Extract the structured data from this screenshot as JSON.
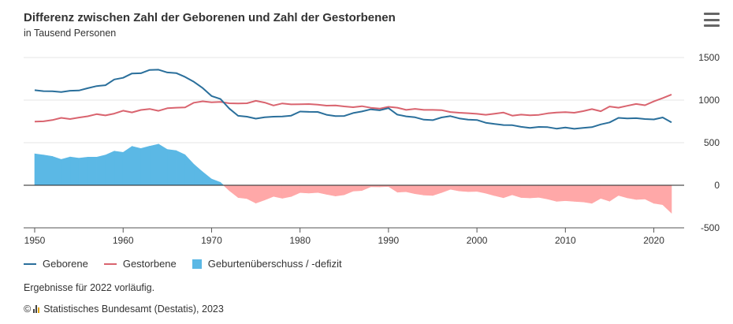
{
  "header": {
    "title": "Differenz zwischen Zahl der Geborenen und Zahl der Gestorbenen",
    "subtitle": "in Tausend Personen",
    "menu_icon": "hamburger-menu-icon"
  },
  "legend": {
    "births": "Geborene",
    "deaths": "Gestorbene",
    "balance": "Geburtenüberschuss / -defizit"
  },
  "footer": {
    "note": "Ergebnisse für 2022 vorläufig.",
    "copyright_symbol": "©",
    "source": "Statistisches Bundesamt (Destatis), 2023"
  },
  "colors": {
    "births": "#2a6f9b",
    "deaths": "#d9646f",
    "surplus": "#5bb8e5",
    "deficit": "#ffa8a8",
    "grid": "#e6e6e6",
    "zero_line": "#222222"
  },
  "chart_data": {
    "type": "line",
    "title": "Differenz zwischen Zahl der Geborenen und Zahl der Gestorbenen",
    "subtitle": "in Tausend Personen",
    "x_ticks": [
      1950,
      1960,
      1970,
      1980,
      1990,
      2000,
      2010,
      2020
    ],
    "y_ticks": [
      -500,
      0,
      500,
      1000,
      1500
    ],
    "xlim": [
      1950,
      2022
    ],
    "ylim": [
      -500,
      1500
    ],
    "y_axis_position": "right",
    "grid": true,
    "legend_position": "bottom-left",
    "x": [
      1950,
      1951,
      1952,
      1953,
      1954,
      1955,
      1956,
      1957,
      1958,
      1959,
      1960,
      1961,
      1962,
      1963,
      1964,
      1965,
      1966,
      1967,
      1968,
      1969,
      1970,
      1971,
      1972,
      1973,
      1974,
      1975,
      1976,
      1977,
      1978,
      1979,
      1980,
      1981,
      1982,
      1983,
      1984,
      1985,
      1986,
      1987,
      1988,
      1989,
      1990,
      1991,
      1992,
      1993,
      1994,
      1995,
      1996,
      1997,
      1998,
      1999,
      2000,
      2001,
      2002,
      2003,
      2004,
      2005,
      2006,
      2007,
      2008,
      2009,
      2010,
      2011,
      2012,
      2013,
      2014,
      2015,
      2016,
      2017,
      2018,
      2019,
      2020,
      2021,
      2022
    ],
    "series": [
      {
        "name": "Geborene",
        "values": [
          1117,
          1106,
          1105,
          1095,
          1110,
          1113,
          1140,
          1165,
          1175,
          1243,
          1262,
          1313,
          1316,
          1355,
          1357,
          1325,
          1318,
          1272,
          1215,
          1142,
          1048,
          1013,
          901,
          816,
          806,
          782,
          798,
          806,
          808,
          818,
          866,
          862,
          861,
          828,
          812,
          814,
          848,
          867,
          892,
          881,
          906,
          830,
          809,
          798,
          770,
          765,
          796,
          812,
          785,
          771,
          767,
          734,
          719,
          707,
          706,
          686,
          673,
          685,
          682,
          665,
          678,
          663,
          674,
          682,
          715,
          738,
          792,
          785,
          788,
          778,
          773,
          796,
          739
        ]
      },
      {
        "name": "Gestorbene",
        "values": [
          748,
          751,
          766,
          792,
          778,
          795,
          810,
          835,
          820,
          842,
          876,
          856,
          884,
          896,
          874,
          905,
          911,
          914,
          969,
          986,
          975,
          979,
          963,
          960,
          963,
          992,
          971,
          937,
          961,
          950,
          952,
          954,
          946,
          935,
          938,
          926,
          917,
          929,
          910,
          900,
          921,
          911,
          885,
          897,
          885,
          885,
          882,
          860,
          852,
          846,
          839,
          828,
          841,
          854,
          818,
          830,
          822,
          827,
          844,
          854,
          859,
          852,
          870,
          894,
          869,
          925,
          911,
          933,
          955,
          940,
          985,
          1024,
          1066
        ]
      },
      {
        "name": "Geburtenüberschuss / -defizit",
        "values": [
          369,
          355,
          339,
          303,
          332,
          318,
          330,
          330,
          355,
          401,
          386,
          457,
          432,
          459,
          483,
          420,
          407,
          358,
          246,
          156,
          73,
          34,
          -62,
          -144,
          -157,
          -210,
          -173,
          -131,
          -153,
          -132,
          -86,
          -92,
          -85,
          -107,
          -126,
          -112,
          -69,
          -62,
          -18,
          -19,
          -15,
          -81,
          -76,
          -99,
          -115,
          -120,
          -86,
          -48,
          -67,
          -75,
          -72,
          -94,
          -122,
          -147,
          -112,
          -144,
          -149,
          -142,
          -162,
          -189,
          -181,
          -189,
          -196,
          -212,
          -154,
          -187,
          -119,
          -148,
          -167,
          -162,
          -212,
          -228,
          -327
        ]
      }
    ]
  }
}
